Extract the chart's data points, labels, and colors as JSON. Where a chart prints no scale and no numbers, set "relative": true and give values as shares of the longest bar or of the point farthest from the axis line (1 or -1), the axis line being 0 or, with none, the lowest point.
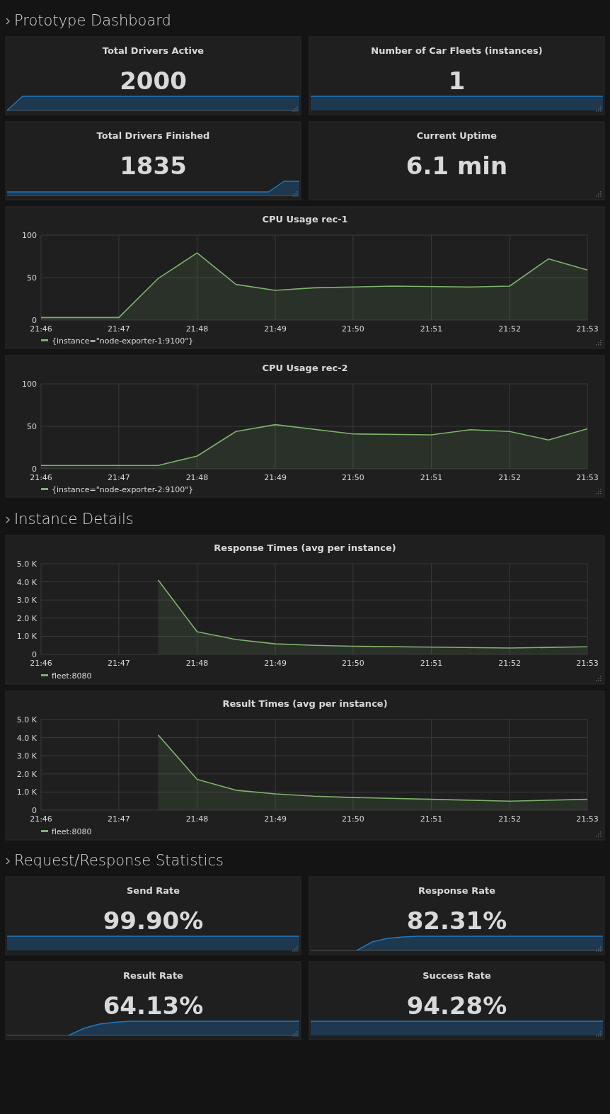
{
  "chart_data": [
    {
      "type": "other",
      "title": "Prototype Dashboard"
    },
    {
      "type": "area",
      "relative": true,
      "title": "Total Drivers Active",
      "annotations": [
        "2000"
      ],
      "color": "#1f78c1",
      "categories": [
        null,
        null,
        null,
        null,
        null,
        null,
        null,
        null,
        null,
        null,
        null,
        null,
        null,
        null,
        null,
        null,
        null,
        null,
        null,
        null
      ],
      "values": [
        0,
        1,
        1,
        1,
        1,
        1,
        1,
        1,
        1,
        1,
        1,
        1,
        1,
        1,
        1,
        1,
        1,
        1,
        1,
        1
      ]
    },
    {
      "type": "other",
      "title": "Number of Car Fleets (instances)",
      "annotations": [
        "1"
      ],
      "color": "#1f78c1"
    },
    {
      "type": "area",
      "relative": true,
      "title": "Total Drivers Finished",
      "annotations": [
        "1835"
      ],
      "color": "#1f78c1",
      "categories": [
        null,
        null,
        null,
        null,
        null,
        null,
        null,
        null,
        null,
        null,
        null,
        null,
        null,
        null,
        null,
        null,
        null,
        null,
        null,
        null
      ],
      "values": [
        0.25,
        0.25,
        0.25,
        0.25,
        0.25,
        0.25,
        0.25,
        0.25,
        0.25,
        0.25,
        0.25,
        0.25,
        0.25,
        0.25,
        0.25,
        0.25,
        0.25,
        0.25,
        1,
        1
      ]
    },
    {
      "type": "other",
      "title": "Current Uptime",
      "annotations": [
        "6.1 min"
      ]
    },
    {
      "type": "area",
      "title": "CPU Usage rec-1",
      "xlim": [
        21.7667,
        21.8833
      ],
      "xticks": [
        {
          "value": 21.7667,
          "label": "21:46"
        },
        {
          "value": 21.7833,
          "label": "21:47"
        },
        {
          "value": 21.8,
          "label": "21:48"
        },
        {
          "value": 21.8167,
          "label": "21:49"
        },
        {
          "value": 21.8333,
          "label": "21:50"
        },
        {
          "value": 21.85,
          "label": "21:51"
        },
        {
          "value": 21.8667,
          "label": "21:52"
        },
        {
          "value": 21.8833,
          "label": "21:53"
        }
      ],
      "ylim": [
        0,
        100
      ],
      "yticks": [
        0,
        50,
        100
      ],
      "grid": true,
      "legend": "bottom",
      "series": [
        {
          "name": "{instance=\"node-exporter-1:9100\"}",
          "color": "#7eb26d",
          "x": [
            21.7667,
            21.7833,
            21.7917,
            21.8,
            21.8083,
            21.8167,
            21.825,
            21.8417,
            21.8583,
            21.8667,
            21.875,
            21.8833
          ],
          "values": [
            3,
            3,
            49,
            79,
            42,
            35,
            38,
            40,
            39,
            40,
            72,
            59
          ]
        }
      ]
    },
    {
      "type": "area",
      "title": "CPU Usage rec-2",
      "xlim": [
        21.7667,
        21.8833
      ],
      "xticks": [
        {
          "value": 21.7667,
          "label": "21:46"
        },
        {
          "value": 21.7833,
          "label": "21:47"
        },
        {
          "value": 21.8,
          "label": "21:48"
        },
        {
          "value": 21.8167,
          "label": "21:49"
        },
        {
          "value": 21.8333,
          "label": "21:50"
        },
        {
          "value": 21.85,
          "label": "21:51"
        },
        {
          "value": 21.8667,
          "label": "21:52"
        },
        {
          "value": 21.8833,
          "label": "21:53"
        }
      ],
      "ylim": [
        0,
        100
      ],
      "yticks": [
        0,
        50,
        100
      ],
      "grid": true,
      "legend": "bottom",
      "series": [
        {
          "name": "{instance=\"node-exporter-2:9100\"}",
          "color": "#7eb26d",
          "x": [
            21.7667,
            21.7917,
            21.8,
            21.8083,
            21.8167,
            21.8333,
            21.85,
            21.8583,
            21.8667,
            21.875,
            21.8833
          ],
          "values": [
            4,
            4,
            15,
            44,
            52,
            41,
            40,
            46,
            44,
            34,
            47
          ]
        }
      ]
    },
    {
      "type": "other",
      "title": "Instance Details"
    },
    {
      "type": "area",
      "title": "Response Times (avg per instance)",
      "xlim": [
        21.7667,
        21.8833
      ],
      "xticks": [
        {
          "value": 21.7667,
          "label": "21:46"
        },
        {
          "value": 21.7833,
          "label": "21:47"
        },
        {
          "value": 21.8,
          "label": "21:48"
        },
        {
          "value": 21.8167,
          "label": "21:49"
        },
        {
          "value": 21.8333,
          "label": "21:50"
        },
        {
          "value": 21.85,
          "label": "21:51"
        },
        {
          "value": 21.8667,
          "label": "21:52"
        },
        {
          "value": 21.8833,
          "label": "21:53"
        }
      ],
      "ylim": [
        0,
        5000
      ],
      "yticks": [
        0,
        {
          "value": 1000,
          "label": "1.0 K"
        },
        {
          "value": 2000,
          "label": "2.0 K"
        },
        {
          "value": 3000,
          "label": "3.0 K"
        },
        {
          "value": 4000,
          "label": "4.0 K"
        },
        {
          "value": 5000,
          "label": "5.0 K"
        }
      ],
      "grid": true,
      "legend": "bottom",
      "series": [
        {
          "name": "fleet:8080",
          "color": "#7eb26d",
          "x": [
            21.7917,
            21.8,
            21.8083,
            21.8167,
            21.825,
            21.8333,
            21.85,
            21.8667,
            21.8833
          ],
          "values": [
            4100,
            1250,
            820,
            580,
            500,
            450,
            400,
            350,
            420
          ]
        }
      ]
    },
    {
      "type": "area",
      "title": "Result Times (avg per instance)",
      "xlim": [
        21.7667,
        21.8833
      ],
      "xticks": [
        {
          "value": 21.7667,
          "label": "21:46"
        },
        {
          "value": 21.7833,
          "label": "21:47"
        },
        {
          "value": 21.8,
          "label": "21:48"
        },
        {
          "value": 21.8167,
          "label": "21:49"
        },
        {
          "value": 21.8333,
          "label": "21:50"
        },
        {
          "value": 21.85,
          "label": "21:51"
        },
        {
          "value": 21.8667,
          "label": "21:52"
        },
        {
          "value": 21.8833,
          "label": "21:53"
        }
      ],
      "ylim": [
        0,
        5000
      ],
      "yticks": [
        0,
        {
          "value": 1000,
          "label": "1.0 K"
        },
        {
          "value": 2000,
          "label": "2.0 K"
        },
        {
          "value": 3000,
          "label": "3.0 K"
        },
        {
          "value": 4000,
          "label": "4.0 K"
        },
        {
          "value": 5000,
          "label": "5.0 K"
        }
      ],
      "grid": true,
      "legend": "bottom",
      "series": [
        {
          "name": "fleet:8080",
          "color": "#7eb26d",
          "x": [
            21.7917,
            21.8,
            21.8083,
            21.8167,
            21.825,
            21.8333,
            21.85,
            21.8667,
            21.8833
          ],
          "values": [
            4150,
            1700,
            1100,
            900,
            770,
            700,
            600,
            500,
            600
          ]
        }
      ]
    },
    {
      "type": "other",
      "title": "Request/Response Statistics"
    },
    {
      "type": "other",
      "title": "Send Rate",
      "annotations": [
        "99.90%"
      ],
      "color": "#1f78c1"
    },
    {
      "type": "area",
      "relative": true,
      "title": "Response Rate",
      "annotations": [
        "82.31%"
      ],
      "color": "#1f78c1",
      "categories": [
        null,
        null,
        null,
        null,
        null,
        null,
        null,
        null,
        null,
        null,
        null,
        null,
        null,
        null,
        null,
        null,
        null,
        null,
        null,
        null
      ],
      "values": [
        null,
        null,
        null,
        0,
        0.6,
        0.85,
        0.95,
        1,
        1,
        1,
        1,
        1,
        1,
        1,
        1,
        1,
        1,
        1,
        1,
        1
      ]
    },
    {
      "type": "area",
      "relative": true,
      "title": "Result Rate",
      "annotations": [
        "64.13%"
      ],
      "color": "#1f78c1",
      "categories": [
        null,
        null,
        null,
        null,
        null,
        null,
        null,
        null,
        null,
        null,
        null,
        null,
        null,
        null,
        null,
        null,
        null,
        null,
        null,
        null
      ],
      "values": [
        null,
        null,
        null,
        null,
        0,
        0.5,
        0.8,
        0.92,
        1,
        1,
        1,
        1,
        1,
        1,
        1,
        1,
        1,
        1,
        1,
        1
      ]
    },
    {
      "type": "other",
      "title": "Success Rate",
      "annotations": [
        "94.28%"
      ],
      "color": "#1f78c1"
    }
  ]
}
